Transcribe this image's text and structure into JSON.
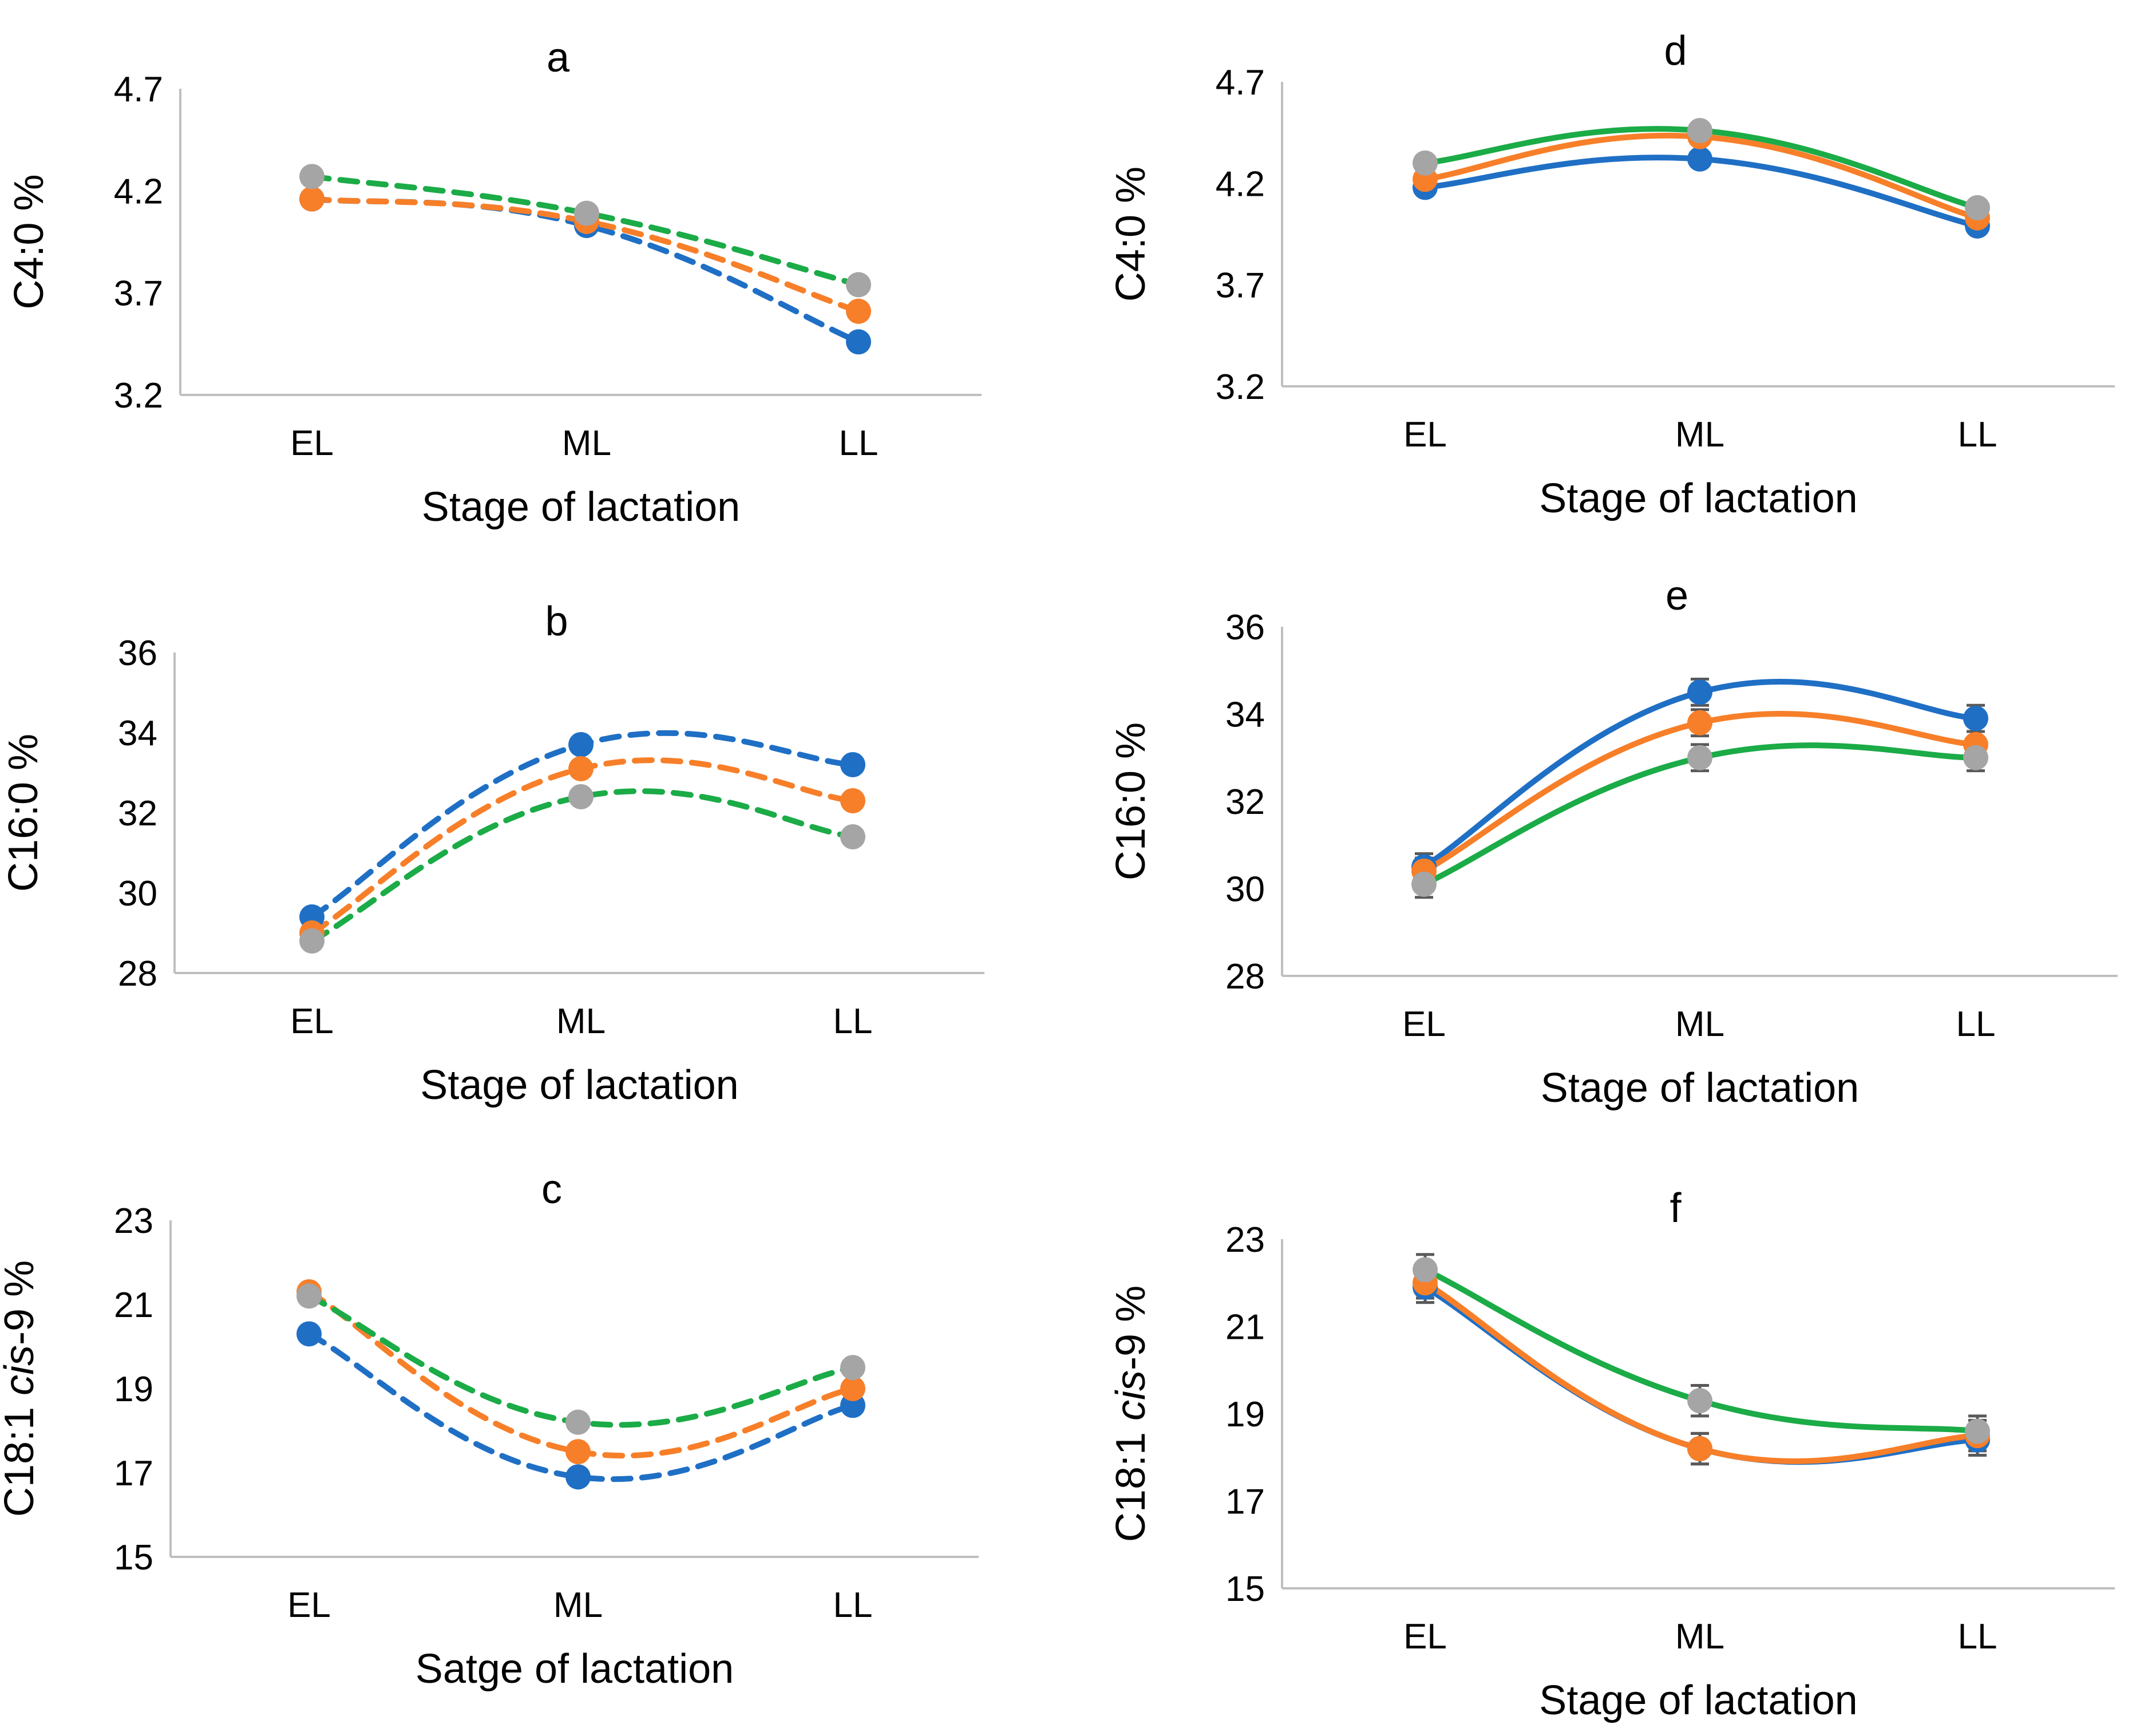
{
  "colors": {
    "series1": "#1f6fc5",
    "series2": "#f77f29",
    "series3": "#1bab47",
    "marker3": "#a5a5a5",
    "axis": "#bfbfbf",
    "errorbar": "#595959"
  },
  "chart_data": [
    {
      "id": "a",
      "panel_label": "a",
      "type": "line",
      "line_style": "dashed",
      "categories": [
        "EL",
        "ML",
        "LL"
      ],
      "ylabel": "C4:0 %",
      "xlabel": "Stage of lactation",
      "ylim": [
        3.2,
        4.7
      ],
      "yticks": [
        "3.2",
        "3.7",
        "4.2",
        "4.7"
      ],
      "series": [
        {
          "values": [
            4.16,
            4.03,
            3.46
          ]
        },
        {
          "values": [
            4.16,
            4.05,
            3.61
          ]
        },
        {
          "values": [
            4.27,
            4.09,
            3.74
          ]
        }
      ]
    },
    {
      "id": "b",
      "panel_label": "b",
      "type": "line",
      "line_style": "dashed",
      "categories": [
        "EL",
        "ML",
        "LL"
      ],
      "ylabel": "C16:0 %",
      "xlabel": "Stage of lactation",
      "ylim": [
        28,
        36
      ],
      "yticks": [
        "28",
        "30",
        "32",
        "34",
        "36"
      ],
      "series": [
        {
          "values": [
            29.4,
            33.7,
            33.2
          ]
        },
        {
          "values": [
            29.0,
            33.1,
            32.3
          ]
        },
        {
          "values": [
            28.8,
            32.4,
            31.4
          ]
        }
      ]
    },
    {
      "id": "c",
      "panel_label": "c",
      "type": "line",
      "line_style": "dashed",
      "categories": [
        "EL",
        "ML",
        "LL"
      ],
      "ylabel": "C18:1 cis-9 %",
      "xlabel": "Satge of lactation",
      "ylim": [
        15,
        23
      ],
      "yticks": [
        "15",
        "17",
        "19",
        "21",
        "23"
      ],
      "series": [
        {
          "values": [
            20.3,
            16.9,
            18.6
          ]
        },
        {
          "values": [
            21.3,
            17.5,
            19.0
          ]
        },
        {
          "values": [
            21.2,
            18.2,
            19.5
          ]
        }
      ]
    },
    {
      "id": "d",
      "panel_label": "d",
      "type": "line",
      "line_style": "solid",
      "categories": [
        "EL",
        "ML",
        "LL"
      ],
      "ylabel": "C4:0 %",
      "xlabel": "Stage of lactation",
      "ylim": [
        3.2,
        4.7
      ],
      "yticks": [
        "3.2",
        "3.7",
        "4.2",
        "4.7"
      ],
      "series": [
        {
          "values": [
            4.18,
            4.32,
            3.99
          ]
        },
        {
          "values": [
            4.22,
            4.43,
            4.03
          ]
        },
        {
          "values": [
            4.3,
            4.46,
            4.08
          ]
        }
      ]
    },
    {
      "id": "e",
      "panel_label": "e",
      "type": "line",
      "line_style": "solid",
      "categories": [
        "EL",
        "ML",
        "LL"
      ],
      "ylabel": "C16:0 %",
      "xlabel": "Stage of lactation",
      "ylim": [
        28,
        36
      ],
      "yticks": [
        "28",
        "30",
        "32",
        "34",
        "36"
      ],
      "error_bars": 0.3,
      "series": [
        {
          "values": [
            30.5,
            34.5,
            33.9
          ]
        },
        {
          "values": [
            30.4,
            33.8,
            33.3
          ]
        },
        {
          "values": [
            30.1,
            33.0,
            33.0
          ]
        }
      ]
    },
    {
      "id": "f",
      "panel_label": "f",
      "type": "line",
      "line_style": "solid",
      "categories": [
        "EL",
        "ML",
        "LL"
      ],
      "ylabel": "C18:1 cis-9 %",
      "xlabel": "Stage of lactation",
      "ylim": [
        15,
        23
      ],
      "yticks": [
        "15",
        "17",
        "19",
        "21",
        "23"
      ],
      "error_bars": 0.35,
      "series": [
        {
          "values": [
            21.9,
            18.2,
            18.4
          ]
        },
        {
          "values": [
            22.0,
            18.2,
            18.5
          ]
        },
        {
          "values": [
            22.3,
            19.3,
            18.6
          ]
        }
      ]
    }
  ]
}
